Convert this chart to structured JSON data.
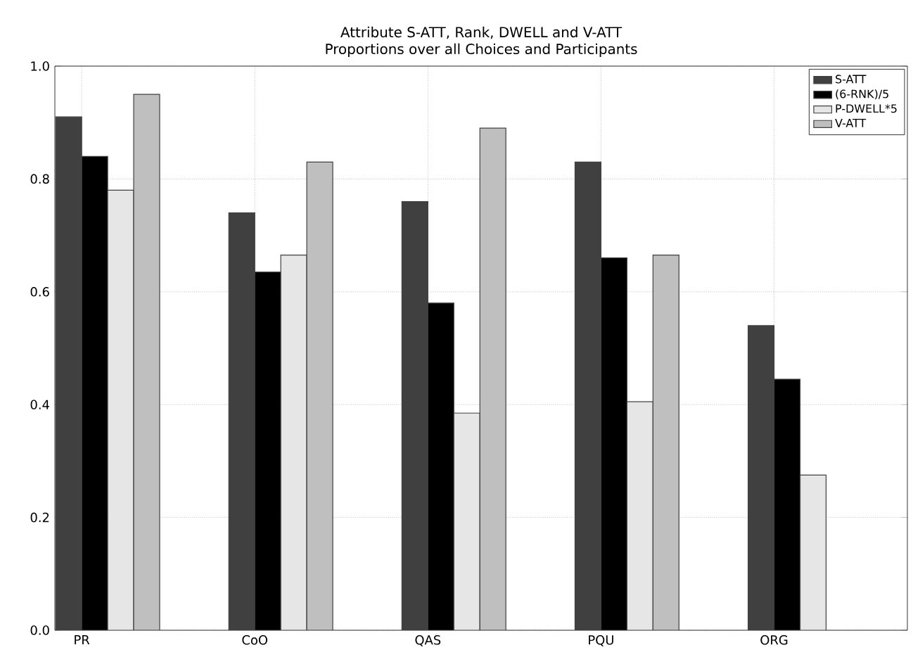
{
  "chart_data": {
    "type": "bar",
    "title": "Attribute S-ATT, Rank, DWELL and V-ATT",
    "subtitle": "Proportions over all Choices and Participants",
    "categories": [
      "PR",
      "CoO",
      "QAS",
      "PQU",
      "ORG"
    ],
    "series": [
      {
        "name": "S-ATT",
        "color": "#404040",
        "values": [
          0.91,
          0.74,
          0.76,
          0.83,
          0.54
        ]
      },
      {
        "name": "(6-RNK)/5",
        "color": "#000000",
        "values": [
          0.84,
          0.635,
          0.58,
          0.66,
          0.445
        ]
      },
      {
        "name": "P-DWELL*5",
        "color": "#e6e6e6",
        "values": [
          0.78,
          0.665,
          0.385,
          0.405,
          0.275
        ]
      },
      {
        "name": "V-ATT",
        "color": "#bfbfbf",
        "values": [
          0.95,
          0.83,
          0.89,
          0.665,
          null
        ]
      }
    ],
    "ylim": [
      0,
      1.0
    ],
    "yticks": [
      {
        "value": 0,
        "label": "0.0"
      },
      {
        "value": 0.2,
        "label": "0.2"
      },
      {
        "value": 0.4,
        "label": "0.4"
      },
      {
        "value": 0.6,
        "label": "0.6"
      },
      {
        "value": 0.8,
        "label": "0.8"
      },
      {
        "value": 1.0,
        "label": "1.0"
      }
    ],
    "grid": true,
    "legend": "top right"
  }
}
